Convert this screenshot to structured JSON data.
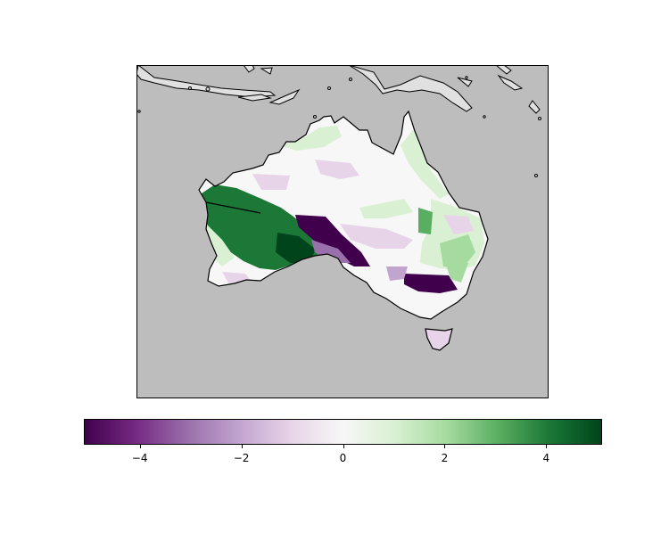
{
  "map": {
    "background_color": "#bdbdbd",
    "land_outline_color": "#000000",
    "neighbour_land_color": "#e0e0e0",
    "colormap": "PRGn"
  },
  "colorbar": {
    "ticks": [
      {
        "value": -4,
        "label": "−4"
      },
      {
        "value": -2,
        "label": "−2"
      },
      {
        "value": 0,
        "label": "0"
      },
      {
        "value": 2,
        "label": "2"
      },
      {
        "value": 4,
        "label": "4"
      }
    ],
    "range": [
      -5.1,
      5.1
    ],
    "stops": [
      "#40004b",
      "#762a83",
      "#9970ab",
      "#c2a5cf",
      "#e7d4e8",
      "#f7f7f7",
      "#d9f0d3",
      "#a6dba0",
      "#5aae61",
      "#1b7837",
      "#00441b"
    ]
  }
}
